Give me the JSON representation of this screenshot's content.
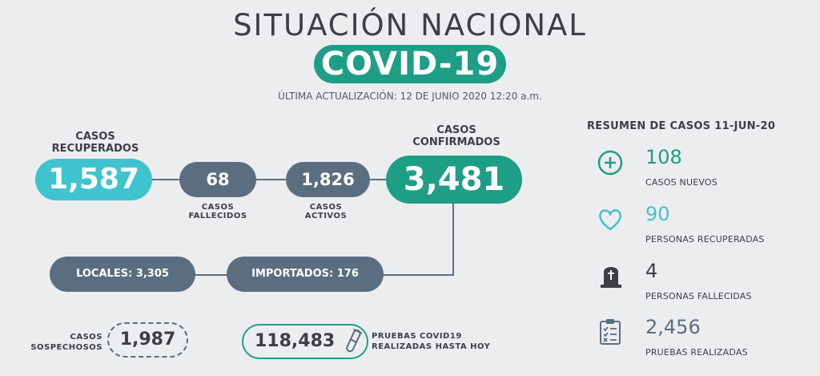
{
  "header": {
    "title": "SITUACIÓN NACIONAL",
    "badge": "COVID-19",
    "updated": "ÚLTIMA ACTUALIZACIÓN: 12 DE JUNIO 2020 12:20 a.m."
  },
  "flow": {
    "recuperados": {
      "label_line1": "CASOS",
      "label_line2": "RECUPERADOS",
      "value": "1,587"
    },
    "fallecidos": {
      "value": "68",
      "label_line1": "CASOS",
      "label_line2": "FALLECIDOS"
    },
    "activos": {
      "value": "1,826",
      "label_line1": "CASOS",
      "label_line2": "ACTIVOS"
    },
    "confirmados": {
      "label_line1": "CASOS",
      "label_line2": "CONFIRMADOS",
      "value": "3,481"
    },
    "locales": "LOCALES: 3,305",
    "importados": "IMPORTADOS: 176",
    "sospechosos": {
      "label_line1": "CASOS",
      "label_line2": "SOSPECHOSOS",
      "value": "1,987"
    },
    "pruebas": {
      "value": "118,483",
      "label_line1": "PRUEBAS COVID19",
      "label_line2": "REALIZADAS HASTA HOY"
    }
  },
  "summary": {
    "title": "RESUMEN DE CASOS 11-JUN-20",
    "items": [
      {
        "icon": "plus-circle-icon",
        "value": "108",
        "label": "CASOS NUEVOS",
        "color": "#1f9e86"
      },
      {
        "icon": "heart-icon",
        "value": "90",
        "label": "PERSONAS RECUPERADAS",
        "color": "#3fc3cf"
      },
      {
        "icon": "tombstone-icon",
        "value": "4",
        "label": "PERSONAS FALLECIDAS",
        "color": "#3c3f44"
      },
      {
        "icon": "clipboard-icon",
        "value": "2,456",
        "label": "PRUEBAS REALIZADAS",
        "color": "#5a6e80"
      }
    ]
  },
  "colors": {
    "teal": "#1f9e86",
    "cyan": "#3fc3cf",
    "slate": "#5a6e80",
    "dark": "#3c3f44"
  }
}
